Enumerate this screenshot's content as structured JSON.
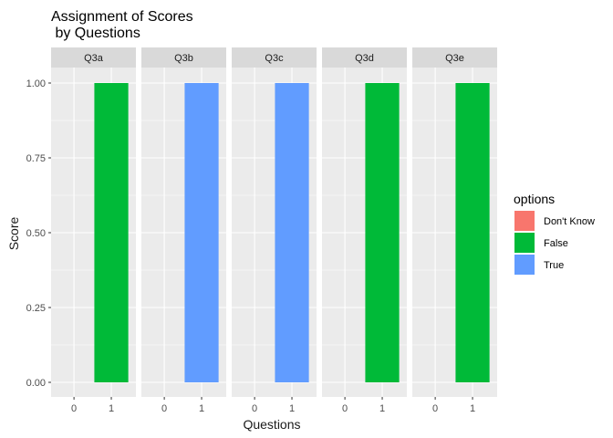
{
  "chart_data": {
    "type": "bar",
    "title_lines": [
      "Assignment of Scores",
      " by Questions"
    ],
    "xlabel": "Questions",
    "ylabel": "Score",
    "ylim": [
      0,
      1
    ],
    "y_ticks": [
      0,
      0.25,
      0.5,
      0.75,
      1
    ],
    "y_tick_labels": [
      "0.00",
      "0.25",
      "0.50",
      "0.75",
      "1.00"
    ],
    "x_categories": [
      "0",
      "1"
    ],
    "facets": [
      {
        "label": "Q3a",
        "bars": [
          {
            "x": "1",
            "value": 1,
            "option": "False"
          }
        ]
      },
      {
        "label": "Q3b",
        "bars": [
          {
            "x": "1",
            "value": 1,
            "option": "True"
          }
        ]
      },
      {
        "label": "Q3c",
        "bars": [
          {
            "x": "1",
            "value": 1,
            "option": "True"
          }
        ]
      },
      {
        "label": "Q3d",
        "bars": [
          {
            "x": "1",
            "value": 1,
            "option": "False"
          }
        ]
      },
      {
        "label": "Q3e",
        "bars": [
          {
            "x": "1",
            "value": 1,
            "option": "False"
          }
        ]
      }
    ],
    "legend": {
      "title": "options",
      "position": "right",
      "items": [
        {
          "label": "Don't Know",
          "color": "#F8766D"
        },
        {
          "label": "False",
          "color": "#00BA38"
        },
        {
          "label": "True",
          "color": "#619CFF"
        }
      ]
    },
    "grid": true,
    "panel_background": "#EBEBEB",
    "strip_background": "#D9D9D9",
    "grid_color": "#FFFFFF"
  }
}
